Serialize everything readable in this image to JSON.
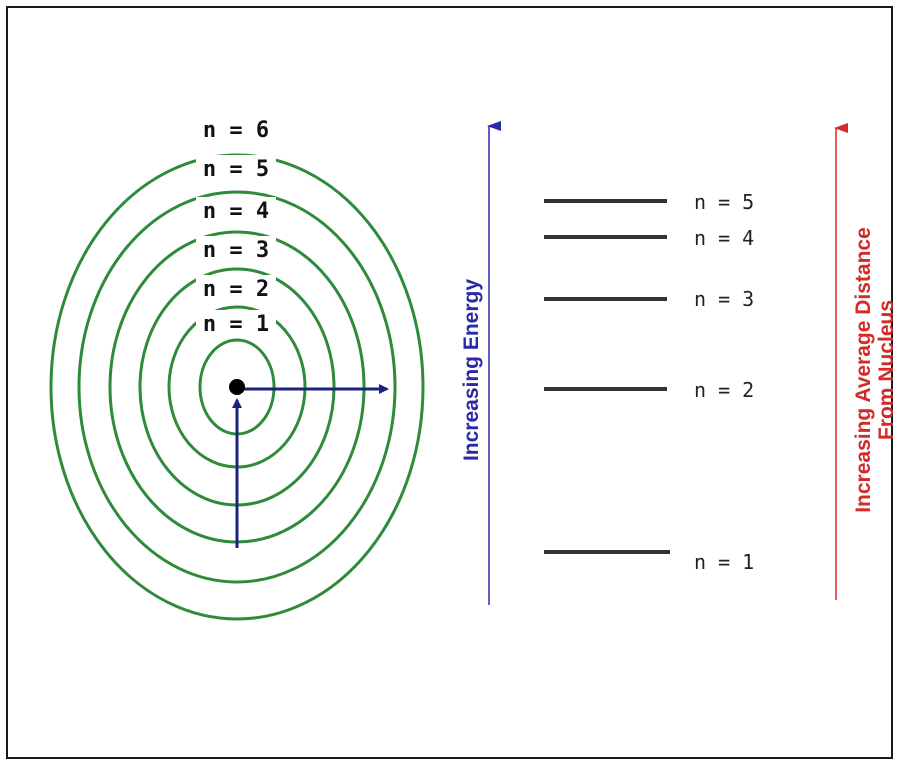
{
  "orbit_model": {
    "shell_labels": [
      "n = 1",
      "n = 2",
      "n = 3",
      "n = 4",
      "n = 5",
      "n = 6"
    ],
    "shell_color": "#2e8b3a",
    "arrow_color": "#1a237e",
    "nucleus_color": "#000000"
  },
  "energy_levels": {
    "labels": [
      "n = 1",
      "n = 2",
      "n = 3",
      "n = 4",
      "n = 5"
    ],
    "line_color": "#333333"
  },
  "energy_axis": {
    "label": "Increasing Energy",
    "color": "#2a2aa8"
  },
  "distance_axis": {
    "label_line1": "Increasing Average Distance",
    "label_line2": "From Nucleus",
    "color": "#d42a2a"
  }
}
